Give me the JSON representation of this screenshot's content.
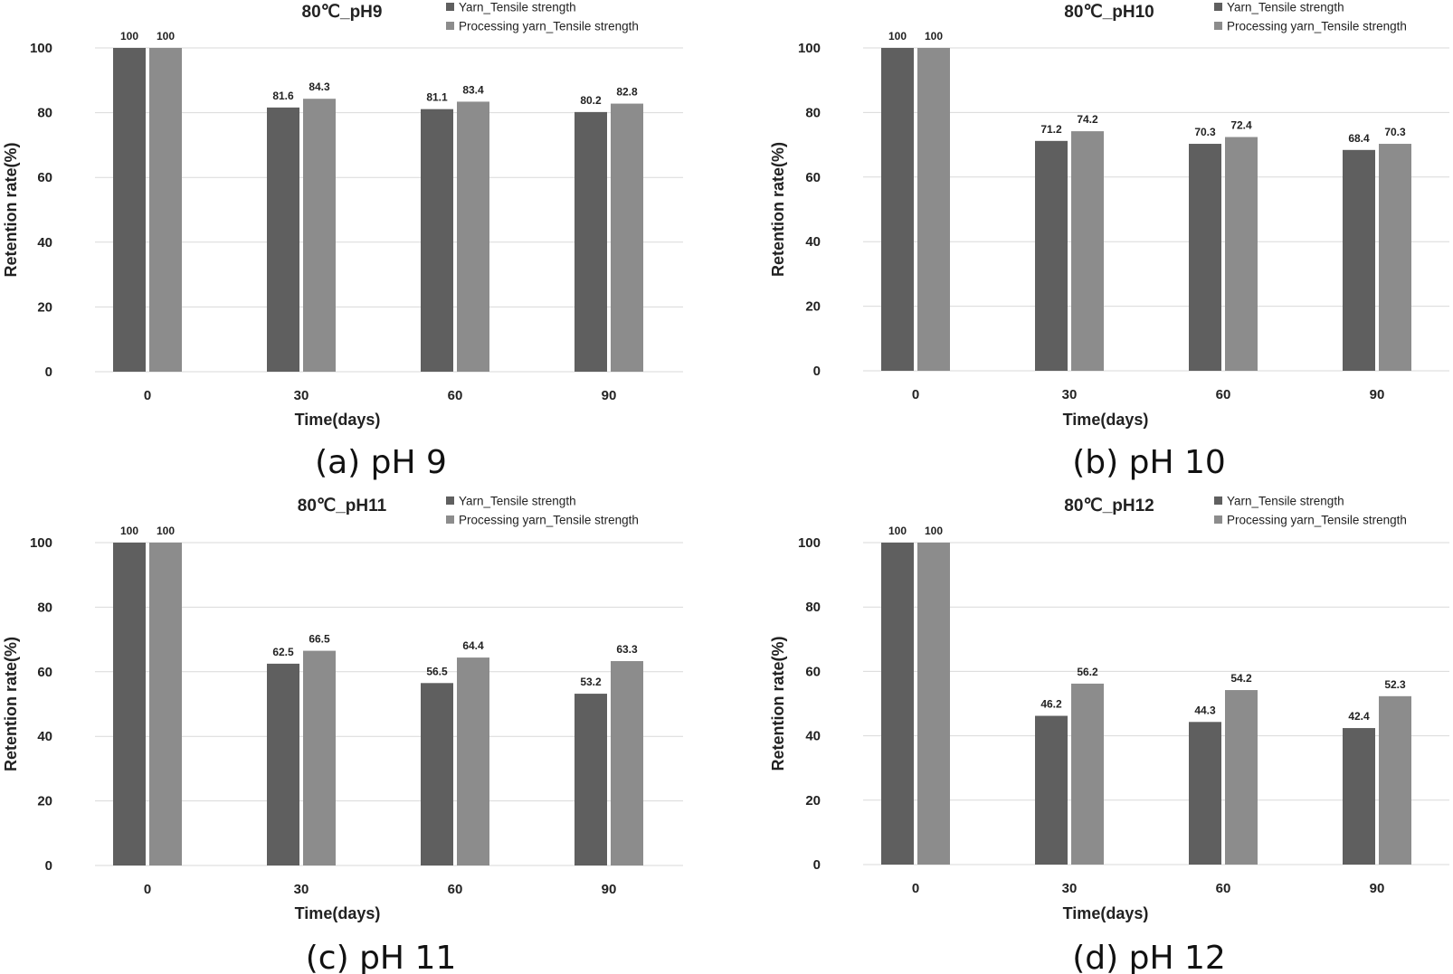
{
  "colors": {
    "yarn": "#5f5f5f",
    "processing": "#8c8c8c",
    "grid": "#d9d9d9"
  },
  "chart_data": [
    {
      "type": "bar",
      "title": "80℃_pH9",
      "caption": "(a) pH 9",
      "xlabel": "Time(days)",
      "ylabel": "Retention rate(%)",
      "categories": [
        "0",
        "30",
        "60",
        "90"
      ],
      "ylim": [
        0,
        100
      ],
      "yticks": [
        0,
        20,
        40,
        60,
        80,
        100
      ],
      "grid": true,
      "legend_position": "top-right",
      "series": [
        {
          "name": "Yarn_Tensile strength",
          "values": [
            100,
            81.6,
            81.1,
            80.2
          ]
        },
        {
          "name": "Processing yarn_Tensile strength",
          "values": [
            100,
            84.3,
            83.4,
            82.8
          ]
        }
      ]
    },
    {
      "type": "bar",
      "title": "80℃_pH10",
      "caption": "(b) pH 10",
      "xlabel": "Time(days)",
      "ylabel": "Retention rate(%)",
      "categories": [
        "0",
        "30",
        "60",
        "90"
      ],
      "ylim": [
        0,
        100
      ],
      "yticks": [
        0,
        20,
        40,
        60,
        80,
        100
      ],
      "grid": true,
      "legend_position": "top-right",
      "series": [
        {
          "name": "Yarn_Tensile strength",
          "values": [
            100,
            71.2,
            70.3,
            68.4
          ]
        },
        {
          "name": "Processing yarn_Tensile strength",
          "values": [
            100,
            74.2,
            72.4,
            70.3
          ]
        }
      ]
    },
    {
      "type": "bar",
      "title": "80℃_pH11",
      "caption": "(c) pH 11",
      "xlabel": "Time(days)",
      "ylabel": "Retention rate(%)",
      "categories": [
        "0",
        "30",
        "60",
        "90"
      ],
      "ylim": [
        0,
        100
      ],
      "yticks": [
        0,
        20,
        40,
        60,
        80,
        100
      ],
      "grid": true,
      "legend_position": "top-right",
      "series": [
        {
          "name": "Yarn_Tensile strength",
          "values": [
            100,
            62.5,
            56.5,
            53.2
          ]
        },
        {
          "name": "Processing yarn_Tensile strength",
          "values": [
            100,
            66.5,
            64.4,
            63.3
          ]
        }
      ]
    },
    {
      "type": "bar",
      "title": "80℃_pH12",
      "caption": "(d) pH 12",
      "xlabel": "Time(days)",
      "ylabel": "Retention rate(%)",
      "categories": [
        "0",
        "30",
        "60",
        "90"
      ],
      "ylim": [
        0,
        100
      ],
      "yticks": [
        0,
        20,
        40,
        60,
        80,
        100
      ],
      "grid": true,
      "legend_position": "top-right",
      "series": [
        {
          "name": "Yarn_Tensile strength",
          "values": [
            100,
            46.2,
            44.3,
            42.4
          ]
        },
        {
          "name": "Processing yarn_Tensile strength",
          "values": [
            100,
            56.2,
            54.2,
            52.3
          ]
        }
      ]
    }
  ]
}
